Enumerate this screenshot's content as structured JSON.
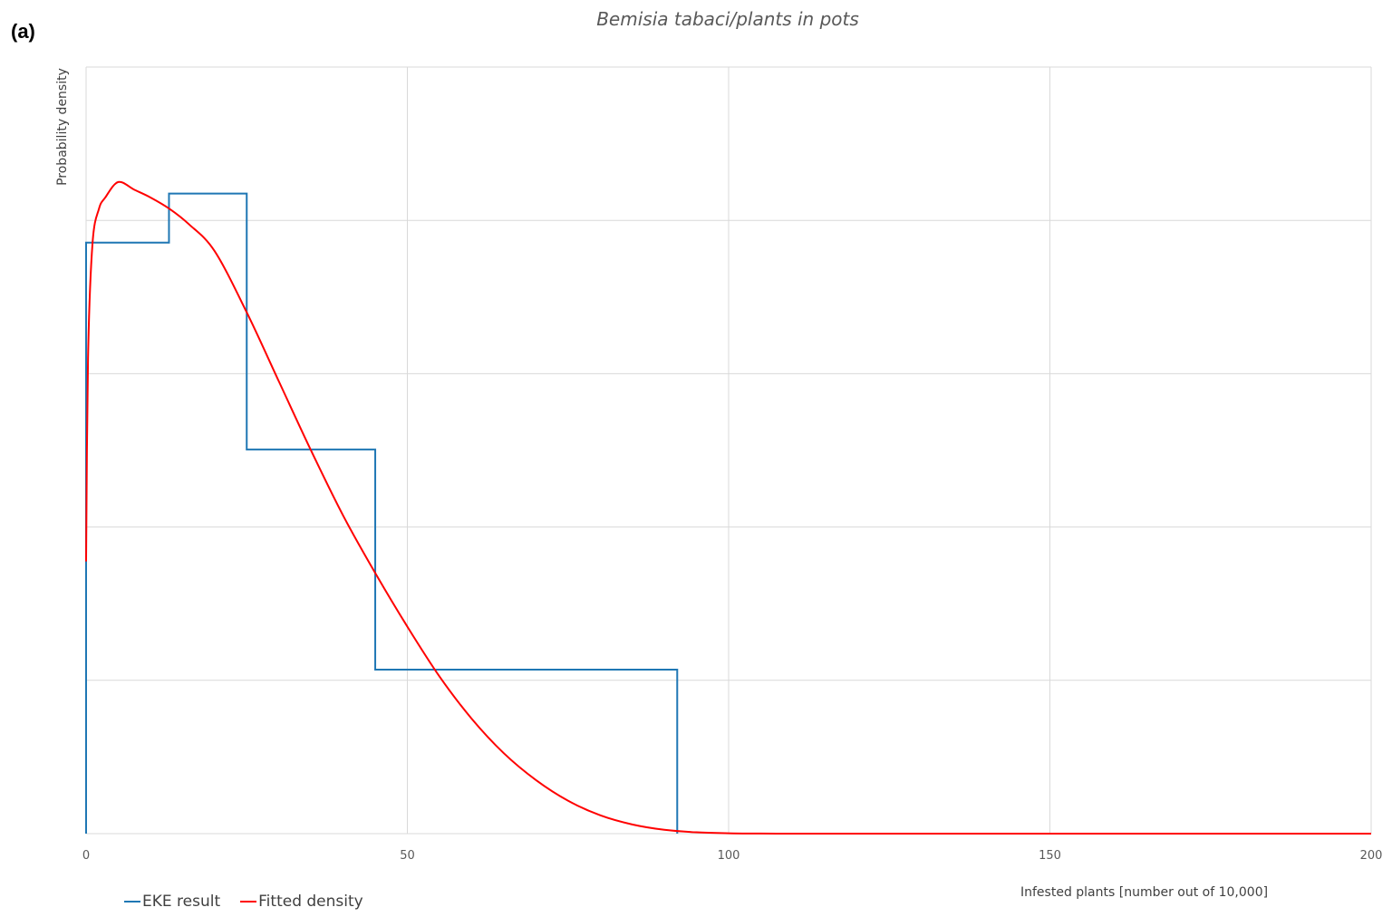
{
  "panel_label": "(a)",
  "chart_data": {
    "type": "line",
    "title": "Bemisia tabaci/plants in pots",
    "xlabel": "Infested plants [number out of 10,000]",
    "ylabel": "Probability density",
    "xlim": [
      0,
      200
    ],
    "ylim": [
      0,
      1
    ],
    "x_ticks": [
      0,
      50,
      100,
      150,
      200
    ],
    "y_gridlines": [
      0.2,
      0.4,
      0.6,
      0.8,
      1.0
    ],
    "grid": true,
    "legend_position": "bottom-left",
    "series": [
      {
        "name": "EKE result",
        "type": "step",
        "color": "#1f77b4",
        "x": [
          0,
          0,
          12.9,
          12.9,
          25,
          25,
          45,
          45,
          92,
          92
        ],
        "y": [
          0,
          0.771,
          0.771,
          0.835,
          0.835,
          0.501,
          0.501,
          0.214,
          0.214,
          0
        ]
      },
      {
        "name": "Fitted density",
        "type": "line",
        "color": "#ff0000",
        "x": [
          0,
          0.3,
          1,
          2,
          3,
          5,
          7.5,
          10,
          13,
          16,
          20,
          25,
          30,
          35,
          40,
          45,
          50,
          55,
          60,
          65,
          70,
          75,
          80,
          85,
          90,
          95,
          100,
          105,
          110,
          115,
          120,
          150,
          200
        ],
        "y": [
          0.355,
          0.62,
          0.77,
          0.815,
          0.83,
          0.85,
          0.84,
          0.83,
          0.815,
          0.795,
          0.76,
          0.68,
          0.59,
          0.5,
          0.415,
          0.34,
          0.27,
          0.205,
          0.15,
          0.105,
          0.07,
          0.043,
          0.024,
          0.012,
          0.005,
          0.0017,
          0.0005,
          0.00013,
          3e-05,
          0.0,
          0.0,
          0.0,
          0.0
        ]
      }
    ]
  }
}
